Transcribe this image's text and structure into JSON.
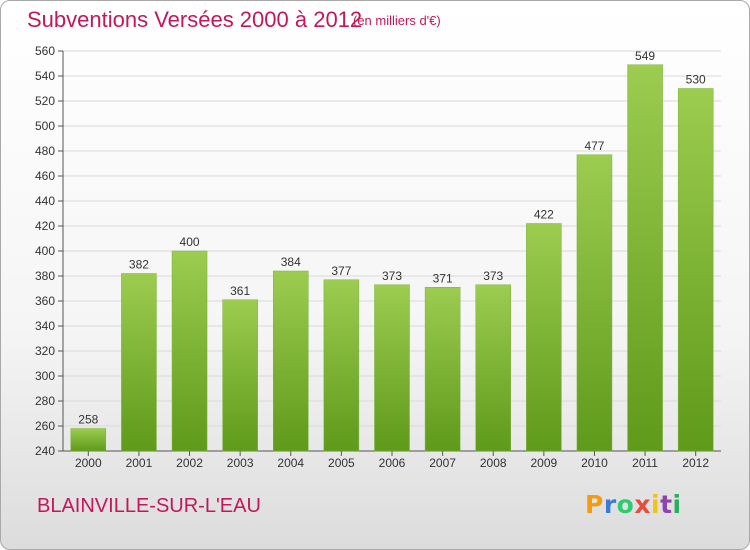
{
  "header": {
    "title": "Subventions Versées 2000 à 2012",
    "subtitle": "(en milliers d'€)"
  },
  "footer": {
    "commune": "BLAINVILLE-SUR-L'EAU",
    "logo_letters": [
      "P",
      "r",
      "o",
      "x",
      "i",
      "t",
      "i"
    ],
    "logo_colors": [
      "#f39c12",
      "#3a7bd5",
      "#2ecc71",
      "#e74c3c",
      "#f1c40f",
      "#8e44ad",
      "#27ae60"
    ]
  },
  "chart_data": {
    "type": "bar",
    "title": "Subventions Versées 2000 à 2012",
    "subtitle": "(en milliers d'€)",
    "categories": [
      "2000",
      "2001",
      "2002",
      "2003",
      "2004",
      "2005",
      "2006",
      "2007",
      "2008",
      "2009",
      "2010",
      "2011",
      "2012"
    ],
    "values": [
      258,
      382,
      400,
      361,
      384,
      377,
      373,
      371,
      373,
      422,
      477,
      549,
      530
    ],
    "ylim": [
      240,
      560
    ],
    "yticks": [
      240,
      260,
      280,
      300,
      320,
      340,
      360,
      380,
      400,
      420,
      440,
      460,
      480,
      500,
      520,
      540,
      560
    ],
    "grid": true,
    "bar_color_top": "#9ccc50",
    "bar_color_bottom": "#5f9a1a"
  }
}
